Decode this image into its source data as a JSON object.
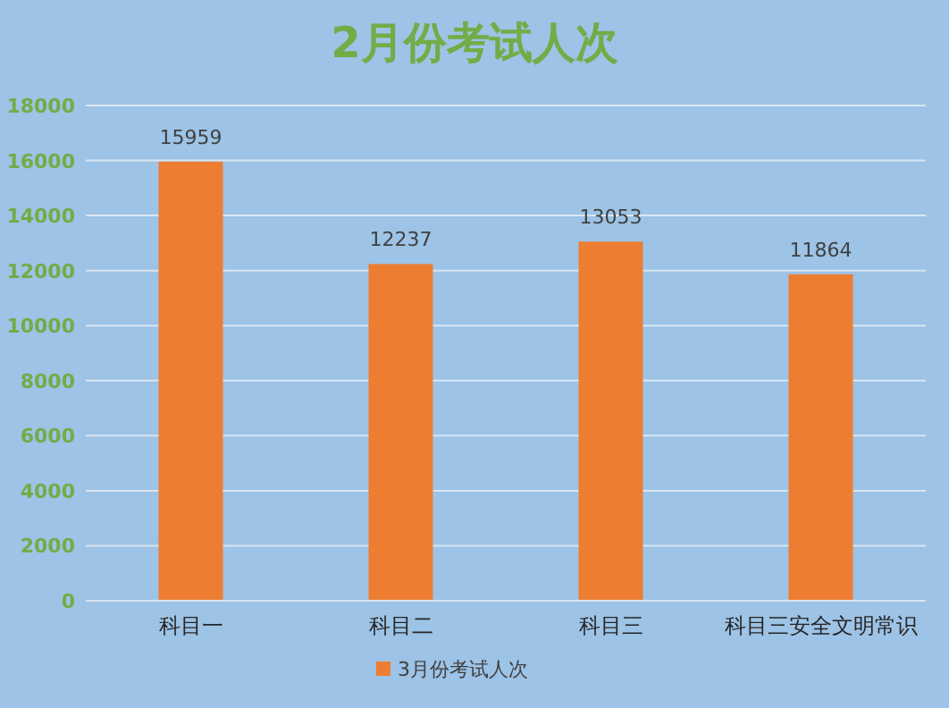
{
  "chart_data": {
    "type": "bar",
    "title": "2月份考试人次",
    "categories": [
      "科目一",
      "科目二",
      "科目三",
      "科目三安全文明常识"
    ],
    "series": [
      {
        "name": "3月份考试人次",
        "color": "#ed7d31",
        "values": [
          15959,
          12237,
          13053,
          11864
        ]
      }
    ],
    "ylim": [
      0,
      18000
    ],
    "yticks": [
      0,
      2000,
      4000,
      6000,
      8000,
      10000,
      12000,
      14000,
      16000,
      18000
    ],
    "grid": "y",
    "legend": "bottom",
    "data_labels": true
  }
}
